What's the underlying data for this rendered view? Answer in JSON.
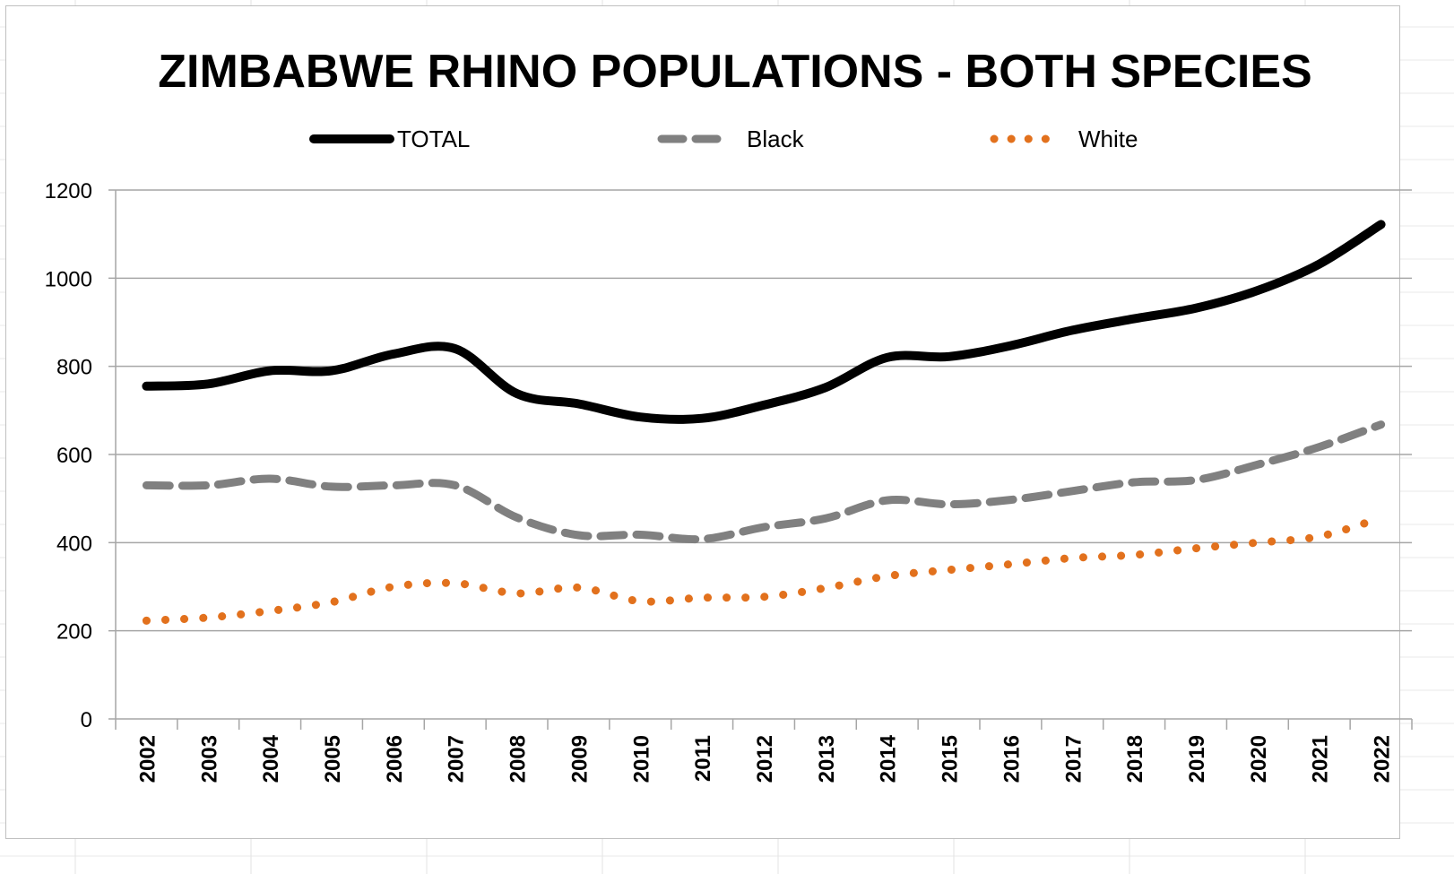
{
  "chart_data": {
    "type": "line",
    "title": "ZIMBABWE RHINO POPULATIONS - BOTH SPECIES",
    "xlabel": "",
    "ylabel": "",
    "ylim": [
      0,
      1200
    ],
    "yticks": [
      "0",
      "200",
      "400",
      "600",
      "800",
      "1000",
      "1200"
    ],
    "grid": true,
    "legend_position": "top",
    "categories": [
      "2002",
      "2003",
      "2004",
      "2005",
      "2006",
      "2007",
      "2008",
      "2009",
      "2010",
      "2011",
      "2012",
      "2013",
      "2014",
      "2015",
      "2016",
      "2017",
      "2018",
      "2019",
      "2020",
      "2021",
      "2022"
    ],
    "series": [
      {
        "name": "TOTAL",
        "color": "#000000",
        "style": "solid",
        "values": [
          755,
          760,
          790,
          790,
          828,
          840,
          738,
          715,
          685,
          682,
          712,
          752,
          820,
          822,
          847,
          882,
          908,
          932,
          972,
          1032,
          1122
        ]
      },
      {
        "name": "Black",
        "color": "#808080",
        "style": "dashed",
        "values": [
          530,
          530,
          545,
          527,
          530,
          530,
          457,
          417,
          418,
          408,
          435,
          455,
          496,
          487,
          497,
          517,
          537,
          542,
          577,
          617,
          668
        ]
      },
      {
        "name": "White",
        "color": "#e2711d",
        "style": "dotted",
        "values": [
          223,
          230,
          245,
          265,
          300,
          308,
          285,
          298,
          267,
          275,
          277,
          297,
          324,
          338,
          351,
          365,
          372,
          387,
          400,
          414,
          456
        ]
      }
    ]
  }
}
